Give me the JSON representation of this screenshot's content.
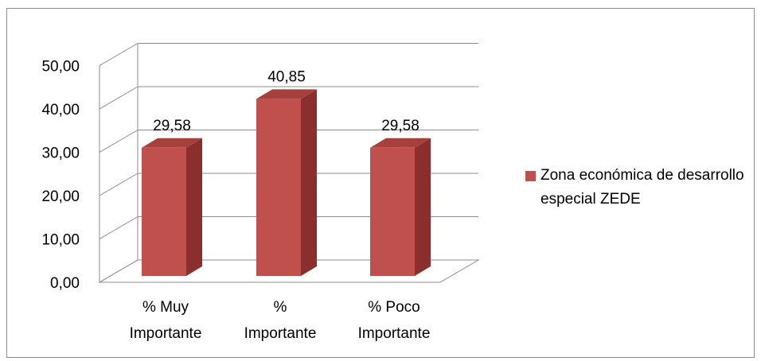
{
  "chart_data": {
    "type": "bar",
    "categories": [
      "% Muy Importante",
      "% Importante",
      "% Poco Importante"
    ],
    "category_lines": [
      [
        "% Muy",
        "Importante"
      ],
      [
        "%",
        "Importante"
      ],
      [
        "% Poco",
        "Importante"
      ]
    ],
    "series": [
      {
        "name": "Zona económica de desarrollo especial ZEDE",
        "values": [
          29.58,
          40.85,
          29.58
        ],
        "value_labels": [
          "29,58",
          "40,85",
          "29,58"
        ],
        "color": "#c0504d"
      }
    ],
    "y_ticks": [
      "0,00",
      "10,00",
      "20,00",
      "30,00",
      "40,00",
      "50,00"
    ],
    "ylim": [
      0,
      50
    ],
    "grid": true,
    "legend_position": "right",
    "style": "3d-bar"
  },
  "legend": {
    "label": "Zona económica de desarrollo especial ZEDE",
    "color": "#c0504d"
  }
}
